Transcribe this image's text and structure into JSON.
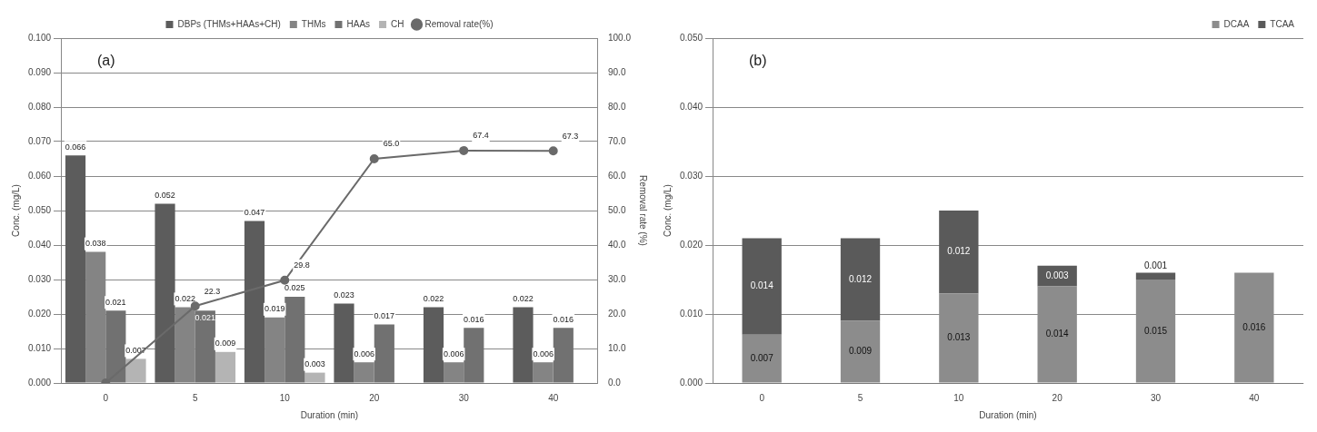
{
  "chart_data": [
    {
      "type": "bar",
      "annotations": [
        "(a)"
      ],
      "xlabel": "Duration (min)",
      "ylabel": "Conc. (mg/L)",
      "y2label": "Removal rate (%)",
      "categories": [
        "0",
        "5",
        "10",
        "20",
        "30",
        "40"
      ],
      "series": [
        {
          "name": "DBPs (THMs+HAAs+CH)",
          "color": "#5c5c5c",
          "values": [
            0.066,
            0.052,
            0.047,
            0.023,
            0.022,
            0.022
          ],
          "value_labels": [
            "0.066",
            "0.052",
            "0.047",
            "0.023",
            "0.022",
            "0.022"
          ]
        },
        {
          "name": "THMs",
          "color": "#848484",
          "values": [
            0.038,
            0.022,
            0.019,
            0.006,
            0.006,
            0.006
          ],
          "value_labels": [
            "0.038",
            "0.022",
            "0.019",
            "0.006",
            "0.006",
            "0.006"
          ]
        },
        {
          "name": "HAAs",
          "color": "#717171",
          "values": [
            0.021,
            0.021,
            0.025,
            0.017,
            0.016,
            0.016
          ],
          "value_labels": [
            "0.021",
            "0.021",
            "0.025",
            "0.017",
            "0.016",
            "0.016"
          ]
        },
        {
          "name": "CH",
          "color": "#b4b4b4",
          "values": [
            0.007,
            0.009,
            0.003,
            null,
            null,
            null
          ],
          "value_labels": [
            "0.007",
            "0.009",
            "0.003",
            null,
            null,
            null
          ]
        },
        {
          "name": "Removal rate(%)",
          "type": "line",
          "axis": "y2",
          "color": "#6a6a6a",
          "values": [
            0,
            22.3,
            29.8,
            65.0,
            67.4,
            67.3
          ],
          "value_labels": [
            null,
            "22.3",
            "29.8",
            "65.0",
            "67.4",
            "67.3"
          ]
        }
      ],
      "ylim": [
        0,
        0.1
      ],
      "yticks": [
        {
          "value": 0,
          "label": "0.000"
        },
        {
          "value": 0.01,
          "label": "0.010"
        },
        {
          "value": 0.02,
          "label": "0.020"
        },
        {
          "value": 0.03,
          "label": "0.030"
        },
        {
          "value": 0.04,
          "label": "0.040"
        },
        {
          "value": 0.05,
          "label": "0.050"
        },
        {
          "value": 0.06,
          "label": "0.060"
        },
        {
          "value": 0.07,
          "label": "0.070"
        },
        {
          "value": 0.08,
          "label": "0.080"
        },
        {
          "value": 0.09,
          "label": "0.090"
        },
        {
          "value": 0.1,
          "label": "0.100"
        }
      ],
      "y2lim": [
        0,
        100
      ],
      "y2ticks": [
        {
          "value": 0,
          "label": "0.0"
        },
        {
          "value": 10,
          "label": "10.0"
        },
        {
          "value": 20,
          "label": "20.0"
        },
        {
          "value": 30,
          "label": "30.0"
        },
        {
          "value": 40,
          "label": "40.0"
        },
        {
          "value": 50,
          "label": "50.0"
        },
        {
          "value": 60,
          "label": "60.0"
        },
        {
          "value": 70,
          "label": "70.0"
        },
        {
          "value": 80,
          "label": "80.0"
        },
        {
          "value": 90,
          "label": "90.0"
        },
        {
          "value": 100,
          "label": "100.0"
        }
      ],
      "grid": "y",
      "legend": "top",
      "marker": "circle"
    },
    {
      "type": "bar",
      "stacked": true,
      "annotations": [
        "(b)"
      ],
      "xlabel": "Duration (min)",
      "ylabel": "Conc. (mg/L)",
      "categories": [
        "0",
        "5",
        "10",
        "20",
        "30",
        "40"
      ],
      "series": [
        {
          "name": "DCAA",
          "color": "#8c8c8c",
          "values": [
            0.007,
            0.009,
            0.013,
            0.014,
            0.015,
            0.016
          ],
          "value_labels": [
            "0.007",
            "0.009",
            "0.013",
            "0.014",
            "0.015",
            "0.016"
          ]
        },
        {
          "name": "TCAA",
          "color": "#5a5a5a",
          "values": [
            0.014,
            0.012,
            0.012,
            0.003,
            0.001,
            null
          ],
          "value_labels": [
            "0.014",
            "0.012",
            "0.012",
            "0.003",
            "0.001",
            null
          ]
        }
      ],
      "ylim": [
        0,
        0.05
      ],
      "yticks": [
        {
          "value": 0,
          "label": "0.000"
        },
        {
          "value": 0.01,
          "label": "0.010"
        },
        {
          "value": 0.02,
          "label": "0.020"
        },
        {
          "value": 0.03,
          "label": "0.030"
        },
        {
          "value": 0.04,
          "label": "0.040"
        },
        {
          "value": 0.05,
          "label": "0.050"
        }
      ],
      "grid": "y",
      "legend": "top right"
    }
  ]
}
